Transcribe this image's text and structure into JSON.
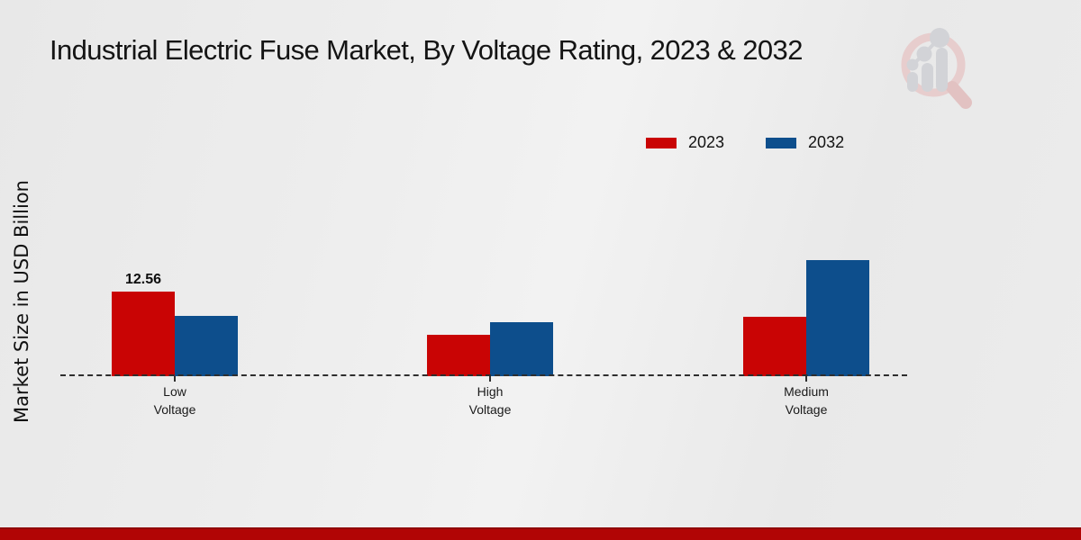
{
  "page": {
    "title": "Industrial Electric Fuse Market, By Voltage Rating, 2023 & 2032"
  },
  "chart_data": {
    "type": "bar",
    "title": "Industrial Electric Fuse Market, By Voltage Rating, 2023 & 2032",
    "ylabel": "Market Size in USD Billion",
    "xlabel": "",
    "categories": [
      "Low\nVoltage",
      "High\nVoltage",
      "Medium\nVoltage"
    ],
    "series": [
      {
        "name": "2023",
        "color": "#c90404",
        "values": [
          12.56,
          6.1,
          8.8
        ],
        "labels": [
          "12.56",
          "",
          ""
        ]
      },
      {
        "name": "2032",
        "color": "#0d4e8c",
        "values": [
          8.9,
          8.0,
          17.2
        ],
        "labels": [
          "",
          "",
          ""
        ]
      }
    ],
    "legend_position": "top-right",
    "grid": false,
    "axis_style": "dashed-baseline-only",
    "baseline_value": 0
  },
  "colors": {
    "series_2023": "#c90404",
    "series_2032": "#0d4e8c",
    "baseline": "#2e2e2e",
    "footer_strip": "#b10505"
  },
  "logo": {
    "name": "market-research-magnifier-watermark"
  }
}
